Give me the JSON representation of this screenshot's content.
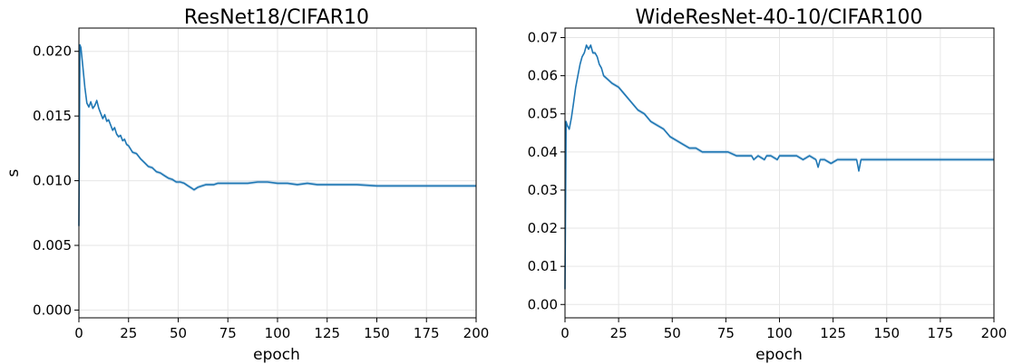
{
  "chart_data": [
    {
      "type": "line",
      "title": "ResNet18/CIFAR10",
      "xlabel": "epoch",
      "ylabel": "s",
      "xlim": [
        0,
        200
      ],
      "ylim": [
        -0.0006,
        0.0218
      ],
      "xticks": [
        0,
        25,
        50,
        75,
        100,
        125,
        150,
        175,
        200
      ],
      "xtick_labels": [
        "0",
        "25",
        "50",
        "75",
        "100",
        "125",
        "150",
        "175",
        "200"
      ],
      "yticks": [
        0.0,
        0.005,
        0.01,
        0.015,
        0.02
      ],
      "ytick_labels": [
        "0.000",
        "0.005",
        "0.010",
        "0.015",
        "0.020"
      ],
      "grid": true,
      "color": "#1f77b4",
      "series": [
        {
          "x": [
            0,
            0.5,
            1,
            2,
            3,
            4,
            5,
            6,
            7,
            8,
            9,
            10,
            11,
            12,
            13,
            14,
            15,
            16,
            17,
            18,
            19,
            20,
            21,
            22,
            23,
            24,
            25,
            27,
            29,
            31,
            33,
            35,
            37,
            39,
            41,
            43,
            45,
            47,
            49,
            51,
            53,
            55,
            57,
            58,
            60,
            62,
            64,
            66,
            68,
            70,
            75,
            80,
            85,
            90,
            95,
            100,
            105,
            110,
            115,
            120,
            125,
            130,
            140,
            150,
            160,
            170,
            180,
            190,
            200
          ],
          "values": [
            0.0065,
            0.0205,
            0.0203,
            0.0188,
            0.0172,
            0.016,
            0.0157,
            0.0161,
            0.0156,
            0.0158,
            0.0162,
            0.0156,
            0.0152,
            0.0148,
            0.0151,
            0.0146,
            0.0147,
            0.0143,
            0.0139,
            0.0141,
            0.0136,
            0.0134,
            0.0135,
            0.0131,
            0.0132,
            0.0128,
            0.0127,
            0.0122,
            0.0121,
            0.0117,
            0.0114,
            0.0111,
            0.011,
            0.0107,
            0.0106,
            0.0104,
            0.0102,
            0.0101,
            0.0099,
            0.0099,
            0.0098,
            0.0096,
            0.0094,
            0.0093,
            0.0095,
            0.0096,
            0.0097,
            0.0097,
            0.0097,
            0.0098,
            0.0098,
            0.0098,
            0.0098,
            0.0099,
            0.0099,
            0.0098,
            0.0098,
            0.0097,
            0.0098,
            0.0097,
            0.0097,
            0.0097,
            0.0097,
            0.0096,
            0.0096,
            0.0096,
            0.0096,
            0.0096,
            0.0096
          ]
        }
      ]
    },
    {
      "type": "line",
      "title": "WideResNet-40-10/CIFAR100",
      "xlabel": "epoch",
      "ylabel": "",
      "xlim": [
        0,
        200
      ],
      "ylim": [
        -0.0035,
        0.0725
      ],
      "xticks": [
        0,
        25,
        50,
        75,
        100,
        125,
        150,
        175,
        200
      ],
      "xtick_labels": [
        "0",
        "25",
        "50",
        "75",
        "100",
        "125",
        "150",
        "175",
        "200"
      ],
      "yticks": [
        0.0,
        0.01,
        0.02,
        0.03,
        0.04,
        0.05,
        0.06,
        0.07
      ],
      "ytick_labels": [
        "0.00",
        "0.01",
        "0.02",
        "0.03",
        "0.04",
        "0.05",
        "0.06",
        "0.07"
      ],
      "grid": true,
      "color": "#1f77b4",
      "series": [
        {
          "x": [
            0,
            0.5,
            1,
            2,
            3,
            4,
            5,
            6,
            7,
            8,
            9,
            10,
            11,
            12,
            13,
            14,
            15,
            16,
            17,
            18,
            20,
            22,
            25,
            28,
            31,
            34,
            37,
            40,
            43,
            46,
            49,
            52,
            55,
            58,
            61,
            64,
            67,
            70,
            73,
            76,
            80,
            84,
            87,
            88,
            90,
            93,
            94,
            96,
            99,
            100,
            102,
            105,
            108,
            111,
            114,
            117,
            118,
            119,
            121,
            124,
            127,
            130,
            133,
            136,
            137,
            138,
            140,
            143,
            146,
            150,
            155,
            160,
            165,
            170,
            175,
            180,
            185,
            190,
            195,
            200
          ],
          "values": [
            0.004,
            0.048,
            0.047,
            0.046,
            0.049,
            0.053,
            0.057,
            0.06,
            0.063,
            0.065,
            0.066,
            0.068,
            0.067,
            0.068,
            0.066,
            0.066,
            0.065,
            0.063,
            0.062,
            0.06,
            0.059,
            0.058,
            0.057,
            0.055,
            0.053,
            0.051,
            0.05,
            0.048,
            0.047,
            0.046,
            0.044,
            0.043,
            0.042,
            0.041,
            0.041,
            0.04,
            0.04,
            0.04,
            0.04,
            0.04,
            0.039,
            0.039,
            0.039,
            0.038,
            0.039,
            0.038,
            0.039,
            0.039,
            0.038,
            0.039,
            0.039,
            0.039,
            0.039,
            0.038,
            0.039,
            0.038,
            0.036,
            0.038,
            0.038,
            0.037,
            0.038,
            0.038,
            0.038,
            0.038,
            0.035,
            0.038,
            0.038,
            0.038,
            0.038,
            0.038,
            0.038,
            0.038,
            0.038,
            0.038,
            0.038,
            0.038,
            0.038,
            0.038,
            0.038,
            0.038
          ]
        }
      ]
    }
  ]
}
